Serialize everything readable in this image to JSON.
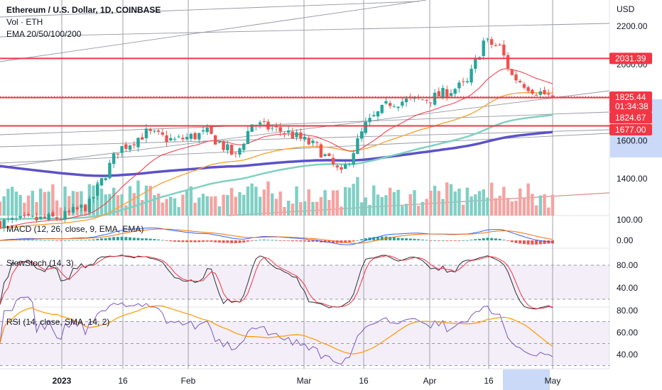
{
  "header": {
    "title": "Ethereum / U.S. Dollar, 1D, COINBASE",
    "volume": "Vol · ETH",
    "ema": "EMA 20/50/100/200"
  },
  "indicators": {
    "macd": "MACD (12, 26, close, 9, EMA, EMA)",
    "stoch": "SlowStoch (14, 3)",
    "rsi": "RSI (14, close, SMA, 14, 2)"
  },
  "axis": {
    "currency": "USD",
    "price_ticks": [
      "2200.00",
      "2000.00",
      "1600.00",
      "1400.00"
    ],
    "macd_ticks": [
      "100.00",
      "0.00"
    ],
    "stoch_ticks": [
      "80.00",
      "40.00"
    ],
    "rsi_ticks": [
      "80.00",
      "60.00",
      "40.00"
    ],
    "x_ticks": [
      "2023",
      "16",
      "Feb",
      "Mar",
      "16",
      "Apr",
      "16",
      "May"
    ]
  },
  "tags": {
    "resistance": "2031.39",
    "last_price": "1825.44",
    "countdown": "01:34:38",
    "ema_value": "1824.67",
    "support": "1677.00"
  },
  "colors": {
    "up": "#26a69a",
    "down": "#ef5350",
    "level_line": "#f23645",
    "ema20": "#f23645",
    "ema50": "#f7a33b",
    "ema100": "#7fd1c0",
    "ema200": "#5b52c9",
    "macd_line": "#2962ff",
    "signal_line": "#ff6d00",
    "stoch_k": "#2a2e39",
    "stoch_d": "#f23645",
    "rsi_line": "#7e57c2",
    "rsi_sma": "#ff9800",
    "band_fill": "#f3eef7"
  },
  "chart_data": {
    "type": "line",
    "title": "Ethereum / U.S. Dollar, 1D, COINBASE",
    "symbol": "ETH/USD",
    "interval": "1D",
    "x_range": [
      "2022-12-16",
      "2023-05-01"
    ],
    "ylim": [
      1150,
      2300
    ],
    "scale": "linear",
    "grid": false,
    "levels": [
      2031.39,
      1825.44,
      1677.0
    ],
    "last_close": 1825.44,
    "ema_last": 1824.67,
    "price_series": [
      {
        "x": "2022-12-16",
        "y": 1170
      },
      {
        "x": "2022-12-31",
        "y": 1196
      },
      {
        "x": "2023-01-07",
        "y": 1265
      },
      {
        "x": "2023-01-14",
        "y": 1550
      },
      {
        "x": "2023-01-21",
        "y": 1640
      },
      {
        "x": "2023-01-28",
        "y": 1600
      },
      {
        "x": "2023-02-05",
        "y": 1640
      },
      {
        "x": "2023-02-12",
        "y": 1515
      },
      {
        "x": "2023-02-16",
        "y": 1690
      },
      {
        "x": "2023-02-25",
        "y": 1640
      },
      {
        "x": "2023-03-04",
        "y": 1565
      },
      {
        "x": "2023-03-10",
        "y": 1420
      },
      {
        "x": "2023-03-16",
        "y": 1680
      },
      {
        "x": "2023-03-22",
        "y": 1800
      },
      {
        "x": "2023-04-01",
        "y": 1820
      },
      {
        "x": "2023-04-10",
        "y": 1900
      },
      {
        "x": "2023-04-14",
        "y": 2120
      },
      {
        "x": "2023-04-18",
        "y": 2090
      },
      {
        "x": "2023-04-21",
        "y": 1940
      },
      {
        "x": "2023-04-26",
        "y": 1870
      },
      {
        "x": "2023-05-01",
        "y": 1825
      }
    ],
    "ema_series": [
      {
        "name": "EMA 20",
        "values_end": 1824.67
      },
      {
        "name": "EMA 50",
        "values_end": 1820
      },
      {
        "name": "EMA 100",
        "values_end": 1750
      },
      {
        "name": "EMA 200",
        "values_end": 1677
      }
    ],
    "oscillators": {
      "macd_range": [
        -20,
        100
      ],
      "stoch_range": [
        0,
        100
      ],
      "stoch_bands": [
        80,
        20
      ],
      "rsi_range": [
        30,
        80
      ],
      "rsi_bands": [
        70,
        50,
        30
      ]
    }
  }
}
